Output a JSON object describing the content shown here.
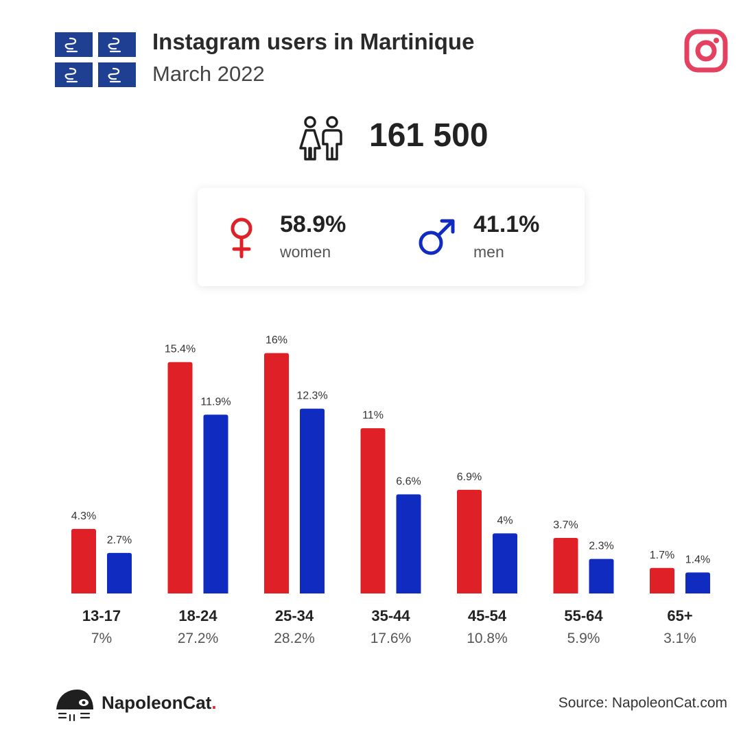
{
  "header": {
    "title": "Instagram users in Martinique",
    "subtitle": "March 2022"
  },
  "total": {
    "value": "161 500"
  },
  "gender": {
    "women": {
      "pct": "58.9%",
      "label": "women"
    },
    "men": {
      "pct": "41.1%",
      "label": "men"
    }
  },
  "colors": {
    "women": "#e02027",
    "men": "#0f2bc0",
    "instagram": "#e4405f",
    "flag_blue": "#1f3f93"
  },
  "icons": [
    "martinique-flag-icon",
    "instagram-icon",
    "people-icon",
    "female-symbol-icon",
    "male-symbol-icon",
    "napoleoncat-logo-icon"
  ],
  "chart_data": {
    "type": "bar",
    "categories": [
      "13-17",
      "18-24",
      "25-34",
      "35-44",
      "45-54",
      "55-64",
      "65+"
    ],
    "category_totals": [
      "7%",
      "27.2%",
      "28.2%",
      "17.6%",
      "10.8%",
      "5.9%",
      "3.1%"
    ],
    "series": [
      {
        "values": [
          4.3,
          15.4,
          16,
          11,
          6.9,
          3.7,
          1.7
        ],
        "labels": [
          "4.3%",
          "15.4%",
          "16%",
          "11%",
          "6.9%",
          "3.7%",
          "1.7%"
        ]
      },
      {
        "values": [
          2.7,
          11.9,
          12.3,
          6.6,
          4,
          2.3,
          1.4
        ],
        "labels": [
          "2.7%",
          "11.9%",
          "12.3%",
          "6.6%",
          "4%",
          "2.3%",
          "1.4%"
        ]
      }
    ],
    "ylim": [
      0,
      16
    ],
    "grid": false
  },
  "footer": {
    "brand": "NapoleonCat",
    "brand_dot": ".",
    "source": "Source: NapoleonCat.com"
  }
}
